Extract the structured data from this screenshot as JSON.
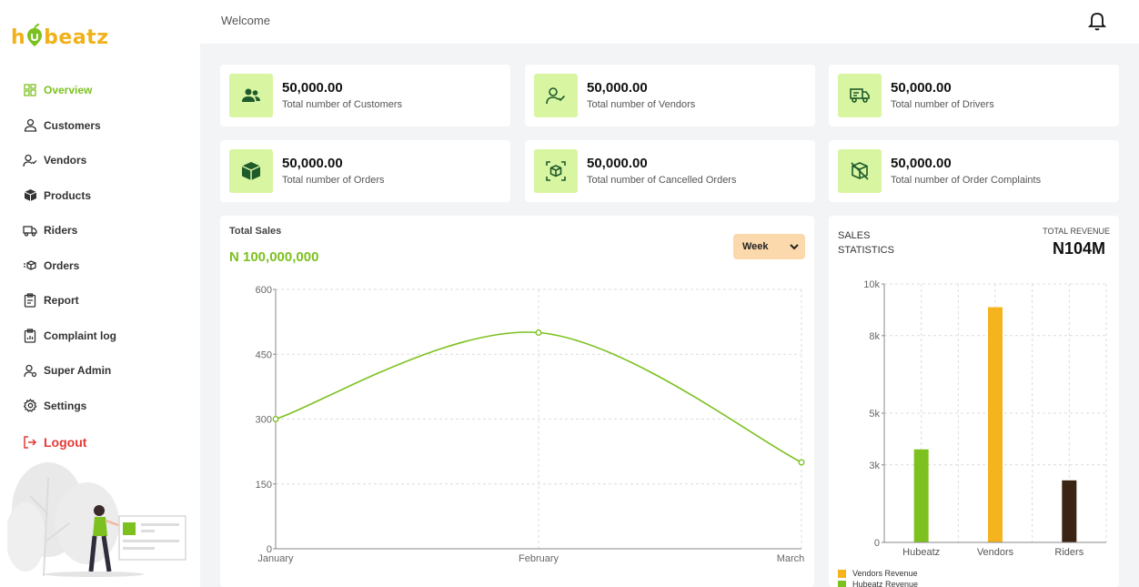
{
  "app": {
    "logo_text_pre": "h",
    "logo_text_post": "beatz",
    "logo_color": "#f0b21b",
    "accent": "#7cc11f"
  },
  "header": {
    "welcome": "Welcome"
  },
  "sidebar": {
    "items": [
      {
        "label": "Overview",
        "icon": "grid-icon",
        "active": true
      },
      {
        "label": "Customers",
        "icon": "user-icon"
      },
      {
        "label": "Vendors",
        "icon": "user-check-icon"
      },
      {
        "label": "Products",
        "icon": "box-icon"
      },
      {
        "label": "Riders",
        "icon": "truck-icon"
      },
      {
        "label": "Orders",
        "icon": "fast-box-icon"
      },
      {
        "label": "Report",
        "icon": "clipboard-icon"
      },
      {
        "label": "Complaint log",
        "icon": "clipboard-chart-icon"
      },
      {
        "label": "Super Admin",
        "icon": "admin-icon"
      },
      {
        "label": "Settings",
        "icon": "gear-icon"
      }
    ],
    "logout": "Logout"
  },
  "stats": [
    {
      "value": "50,000.00",
      "label": "Total number of Customers",
      "icon": "users-icon"
    },
    {
      "value": "50,000.00",
      "label": "Total number of Vendors",
      "icon": "user-check-icon"
    },
    {
      "value": "50,000.00",
      "label": "Total number of Drivers",
      "icon": "truck-icon"
    },
    {
      "value": "50,000.00",
      "label": "Total number of Orders",
      "icon": "box-icon"
    },
    {
      "value": "50,000.00",
      "label": "Total number of Cancelled Orders",
      "icon": "cancel-box-icon"
    },
    {
      "value": "50,000.00",
      "label": "Total number of Order Complaints",
      "icon": "complaint-box-icon"
    }
  ],
  "sales": {
    "title": "Total Sales",
    "value": "N 100,000,000",
    "period": "Week"
  },
  "statistics": {
    "title": "SALES STATISTICS",
    "revenue_label": "TOTAL REVENUE",
    "revenue_value": "N104M",
    "legend": [
      {
        "name": "Vendors Revenue",
        "color": "#f5b31d"
      },
      {
        "name": "Hubeatz Revenue",
        "color": "#7cc11f"
      }
    ]
  },
  "chart_data": [
    {
      "type": "line",
      "categories": [
        "January",
        "February",
        "March"
      ],
      "values": [
        300,
        500,
        200
      ],
      "yticks": [
        0,
        150,
        300,
        450,
        600
      ],
      "ylim": [
        0,
        600
      ],
      "color": "#7cc11f",
      "grid": true
    },
    {
      "type": "bar",
      "categories": [
        "Hubeatz",
        "Vendors",
        "Riders"
      ],
      "values": [
        3600,
        9100,
        2400
      ],
      "colors": [
        "#7cc11f",
        "#f5b31d",
        "#3b2413"
      ],
      "yticks": [
        0,
        3000,
        5000,
        8000,
        10000
      ],
      "ytick_labels": [
        "0",
        "3k",
        "5k",
        "8k",
        "10k"
      ],
      "ylim": [
        0,
        10000
      ],
      "grid": true
    }
  ]
}
